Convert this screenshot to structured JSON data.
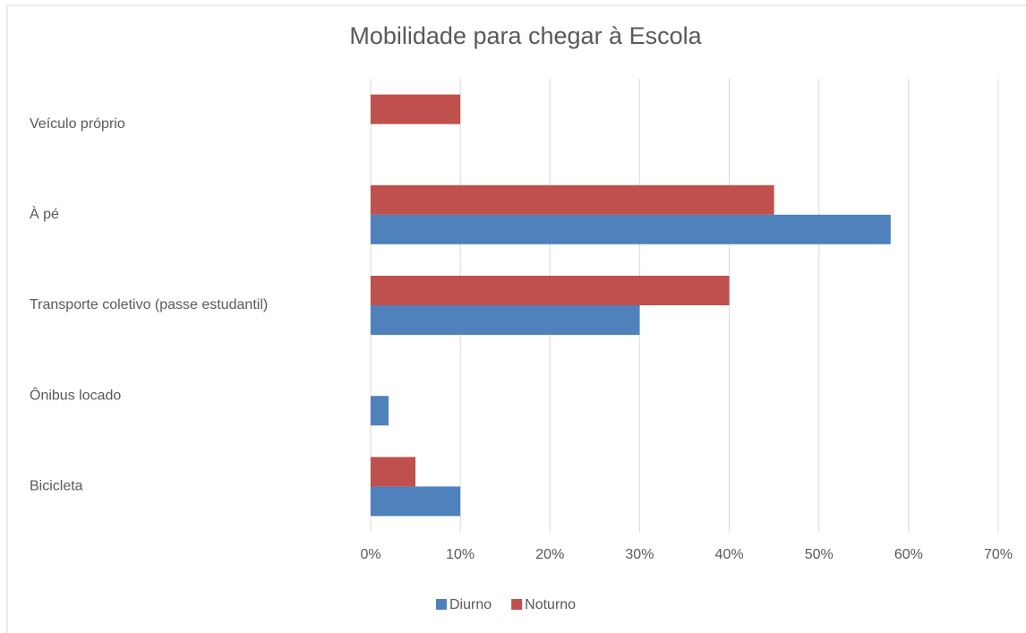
{
  "chart_data": {
    "type": "bar",
    "orientation": "horizontal",
    "title": "Mobilidade para chegar à Escola",
    "categories": [
      "Veículo próprio",
      "À pé",
      "Transporte coletivo (passe estudantil)",
      "Ônibus locado",
      "Bicicleta"
    ],
    "series": [
      {
        "name": "Diurno",
        "color": "#4f81bd",
        "values": [
          0,
          58,
          30,
          2,
          10
        ]
      },
      {
        "name": "Noturno",
        "color": "#c0504d",
        "values": [
          10,
          45,
          40,
          0,
          5
        ]
      }
    ],
    "xlim": [
      0,
      70
    ],
    "xticks": [
      {
        "value": 0,
        "label": "0%"
      },
      {
        "value": 10,
        "label": "10%"
      },
      {
        "value": 20,
        "label": "20%"
      },
      {
        "value": 30,
        "label": "30%"
      },
      {
        "value": 40,
        "label": "40%"
      },
      {
        "value": 50,
        "label": "50%"
      },
      {
        "value": 60,
        "label": "60%"
      },
      {
        "value": 70,
        "label": "70%"
      }
    ],
    "grid": true,
    "legend": "bottom"
  }
}
